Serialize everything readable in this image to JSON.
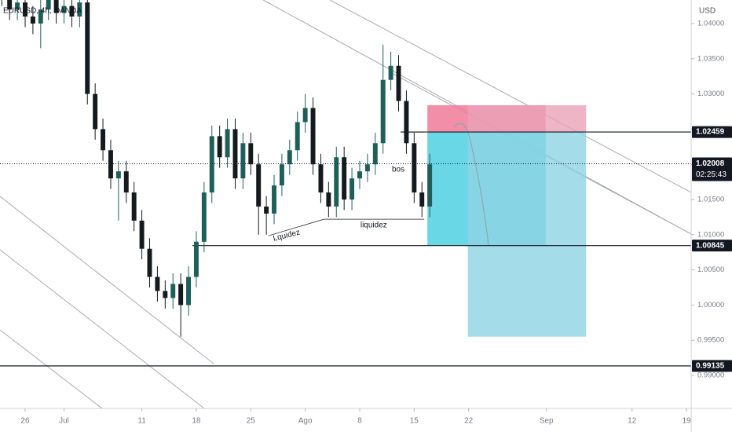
{
  "chart_data": {
    "type": "candlestick",
    "title": "EURUSD, 4h, OANDA",
    "y_axis_label": "USD",
    "x": [
      -3,
      -2,
      -1,
      0,
      1,
      2,
      3,
      4,
      5,
      6,
      7,
      8,
      9,
      10,
      11,
      12,
      13,
      14,
      15,
      16,
      17,
      18,
      19,
      20,
      21,
      22,
      23,
      24,
      25,
      26,
      27,
      28,
      29,
      30,
      31,
      32,
      33,
      34,
      35,
      36,
      37,
      38,
      39,
      40,
      41,
      42,
      43,
      44,
      45,
      46,
      47,
      48,
      49,
      50,
      51,
      52
    ],
    "open": [
      1.045,
      1.044,
      1.042,
      1.043,
      1.041,
      1.04,
      1.042,
      1.0435,
      1.0415,
      1.0425,
      1.041,
      1.043,
      1.03,
      1.025,
      1.022,
      1.018,
      1.019,
      1.016,
      1.012,
      1.008,
      1.004,
      1.002,
      1.001,
      1.003,
      1.0,
      1.004,
      1.009,
      1.016,
      1.024,
      1.021,
      1.025,
      1.018,
      1.023,
      1.02,
      1.014,
      1.013,
      1.017,
      1.02,
      1.022,
      1.026,
      1.028,
      1.02,
      1.016,
      1.014,
      1.021,
      1.015,
      1.018,
      1.019,
      1.02,
      1.023,
      1.032,
      1.034,
      1.029,
      1.023,
      1.016,
      1.014
    ],
    "high": [
      1.0465,
      1.0455,
      1.0445,
      1.0445,
      1.0425,
      1.0435,
      1.045,
      1.045,
      1.044,
      1.044,
      1.0445,
      1.0445,
      1.0315,
      1.0265,
      1.0235,
      1.0205,
      1.0205,
      1.0175,
      1.0135,
      1.0095,
      1.0055,
      1.0035,
      1.0045,
      1.0045,
      1.0055,
      1.0105,
      1.0175,
      1.0255,
      1.0255,
      1.0265,
      1.0265,
      1.0245,
      1.0245,
      1.0215,
      1.0155,
      1.0185,
      1.0215,
      1.0235,
      1.0275,
      1.03,
      1.0295,
      1.0215,
      1.0175,
      1.0225,
      1.0225,
      1.0195,
      1.0205,
      1.0215,
      1.0245,
      1.037,
      1.036,
      1.0355,
      1.0305,
      1.0245,
      1.0175,
      1.0215
    ],
    "low": [
      1.0425,
      1.0405,
      1.0405,
      1.0395,
      1.0385,
      1.0365,
      1.0405,
      1.04,
      1.04,
      1.0395,
      1.0395,
      1.0285,
      1.0235,
      1.0205,
      1.0165,
      1.012,
      1.0145,
      1.0105,
      1.0065,
      1.0025,
      1.0005,
      0.9995,
      0.9995,
      0.9955,
      0.9985,
      1.0025,
      1.0075,
      1.0145,
      1.0195,
      1.0195,
      1.0165,
      1.0165,
      1.0185,
      1.01,
      1.01,
      1.0115,
      1.0155,
      1.0185,
      1.0205,
      1.0245,
      1.0185,
      1.0145,
      1.0125,
      1.0125,
      1.0135,
      1.0135,
      1.0165,
      1.0175,
      1.0185,
      1.0215,
      1.0305,
      1.0275,
      1.0215,
      1.0145,
      1.0125,
      1.0125
    ],
    "close": [
      1.044,
      1.042,
      1.043,
      1.041,
      1.04,
      1.042,
      1.0435,
      1.0415,
      1.0425,
      1.041,
      1.043,
      1.03,
      1.025,
      1.022,
      1.018,
      1.019,
      1.016,
      1.012,
      1.008,
      1.004,
      1.002,
      1.001,
      1.003,
      1.0,
      1.004,
      1.009,
      1.016,
      1.024,
      1.021,
      1.025,
      1.018,
      1.023,
      1.02,
      1.014,
      1.013,
      1.017,
      1.02,
      1.022,
      1.026,
      1.028,
      1.02,
      1.016,
      1.014,
      1.021,
      1.015,
      1.018,
      1.019,
      1.02,
      1.023,
      1.032,
      1.034,
      1.029,
      1.023,
      1.016,
      1.014,
      1.02
    ],
    "up_color": "#1f5f5a",
    "down_color": "#151a1e",
    "xlim": [
      -3.23,
      85.6
    ],
    "ylim": [
      0.98531,
      1.04335
    ],
    "xticks": [
      {
        "value": 0,
        "label": "26"
      },
      {
        "value": 5,
        "label": "Jul"
      },
      {
        "value": 15,
        "label": "11"
      },
      {
        "value": 22,
        "label": "18"
      },
      {
        "value": 29,
        "label": "25"
      },
      {
        "value": 36,
        "label": "Ago"
      },
      {
        "value": 43,
        "label": "8"
      },
      {
        "value": 50,
        "label": "15"
      },
      {
        "value": 57,
        "label": "22"
      },
      {
        "value": 67,
        "label": "Sep"
      },
      {
        "value": 78,
        "label": "12"
      },
      {
        "value": 85,
        "label": "19"
      }
    ],
    "yticks": [
      {
        "value": 1.04,
        "label": "1.04000"
      },
      {
        "value": 1.035,
        "label": "1.03500"
      },
      {
        "value": 1.03,
        "label": "1.03000"
      },
      {
        "value": 1.025,
        "label": "1.02500"
      },
      {
        "value": 1.02,
        "label": "1.02000"
      },
      {
        "value": 1.015,
        "label": "1.01500"
      },
      {
        "value": 1.01,
        "label": "1.01000"
      },
      {
        "value": 1.005,
        "label": "1.00500"
      },
      {
        "value": 1.0,
        "label": "1.00000"
      },
      {
        "value": 0.995,
        "label": "0.99500"
      },
      {
        "value": 0.99,
        "label": "0.99000"
      }
    ],
    "levels": [
      {
        "value": 1.02459,
        "label": "1.02459",
        "from": 48.25
      },
      {
        "value": 1.00845,
        "label": "1.00845",
        "from": 21.5
      },
      {
        "value": 0.99135,
        "label": "0.99135",
        "from": -3.23
      }
    ],
    "last_price": {
      "value": 1.02008,
      "label": "1.02008"
    },
    "countdown": "02:25:43",
    "annotations": [
      {
        "text": "bos",
        "x": 47.95,
        "y": 1.01924,
        "angle": 0
      },
      {
        "text": "liquidez",
        "x": 44.8,
        "y": 1.01132,
        "angle": 0
      },
      {
        "text": "Lquidez",
        "x": 33.6,
        "y": 1.00987,
        "angle": -14
      }
    ],
    "positions": [
      {
        "from": 51.7,
        "to": 66.9,
        "stop": 1.0284,
        "entry": 1.0246,
        "target": 1.0085,
        "stop_color": "#f07a98",
        "target_color": "#4fd0e0",
        "opacity": 0.85
      },
      {
        "from": 56.9,
        "to": 72.1,
        "stop": 1.0284,
        "entry": 1.0246,
        "target": 0.9955,
        "stop_color": "#e9a3b8",
        "target_color": "#8fd3e3",
        "opacity": 0.8
      }
    ],
    "trendlines": [
      {
        "x0": 30.59,
        "y0": 1.04335,
        "x1": 85.6,
        "y1": 1.01009,
        "color": "#a8abb2"
      },
      {
        "x0": 39.17,
        "y0": 1.04335,
        "x1": 85.6,
        "y1": 1.016,
        "color": "#a8abb2"
      },
      {
        "x0": 46.94,
        "y0": 1.03308,
        "x1": 85.6,
        "y1": 1.01009,
        "color": "#a8abb2"
      },
      {
        "x0": -3.23,
        "y0": 1.01545,
        "x1": 24.23,
        "y1": 0.99167,
        "color": "#a8abb2"
      },
      {
        "x0": -3.23,
        "y0": 1.00786,
        "x1": 23.02,
        "y1": 0.98531,
        "color": "#a8abb2"
      },
      {
        "x0": -3.23,
        "y0": 0.99647,
        "x1": 9.89,
        "y1": 0.98531,
        "color": "#a8abb2"
      },
      {
        "x0": 31.3,
        "y0": 1.00986,
        "x1": 38.4,
        "y1": 1.0122,
        "color": "#555"
      },
      {
        "x0": 38.4,
        "y0": 1.0122,
        "x1": 51.3,
        "y1": 1.0122,
        "color": "#555"
      },
      {
        "x0": 48.5,
        "y0": 1.02459,
        "x1": 51.3,
        "y1": 1.02459,
        "color": "#555"
      }
    ]
  }
}
